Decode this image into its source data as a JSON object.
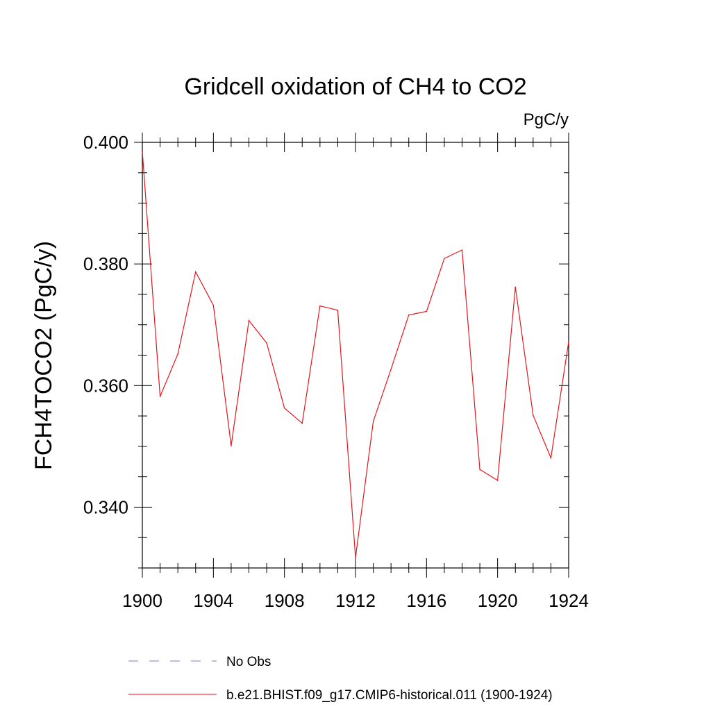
{
  "chart_data": {
    "type": "line",
    "title": "Gridcell oxidation of CH4 to CO2",
    "units": "PgC/y",
    "ylabel": "FCH4TOCO2  (PgC/y)",
    "xlabel": "",
    "xlim": [
      1900,
      1924
    ],
    "ylim": [
      0.33,
      0.4
    ],
    "x_ticks": [
      1900,
      1904,
      1908,
      1912,
      1916,
      1920,
      1924
    ],
    "x_tick_labels": [
      "1900",
      "1904",
      "1908",
      "1912",
      "1916",
      "1920",
      "1924"
    ],
    "y_ticks": [
      0.34,
      0.36,
      0.38,
      0.4
    ],
    "y_tick_labels": [
      "0.340",
      "0.360",
      "0.380",
      "0.400"
    ],
    "x": [
      1900,
      1901,
      1902,
      1903,
      1904,
      1905,
      1906,
      1907,
      1908,
      1909,
      1910,
      1911,
      1912,
      1913,
      1914,
      1915,
      1916,
      1917,
      1918,
      1919,
      1920,
      1921,
      1922,
      1923,
      1924
    ],
    "series": [
      {
        "name": "b.e21.BHIST.f09_g17.CMIP6-historical.011 (1900-1924)",
        "color": "#e8141b",
        "values": [
          0.3985,
          0.3582,
          0.3652,
          0.3787,
          0.3732,
          0.3501,
          0.3707,
          0.367,
          0.3563,
          0.3538,
          0.3731,
          0.3724,
          0.3317,
          0.3541,
          0.3627,
          0.3716,
          0.3722,
          0.3809,
          0.3823,
          0.3462,
          0.3444,
          0.3762,
          0.3551,
          0.3481,
          0.3672
        ]
      }
    ],
    "legend": {
      "placement": "bottom",
      "entries": [
        {
          "label": "No Obs",
          "color": "#7b7bd6",
          "dashed": true
        },
        {
          "label": "b.e21.BHIST.f09_g17.CMIP6-historical.011 (1900-1924)",
          "color": "#e8141b",
          "dashed": false
        }
      ]
    }
  }
}
